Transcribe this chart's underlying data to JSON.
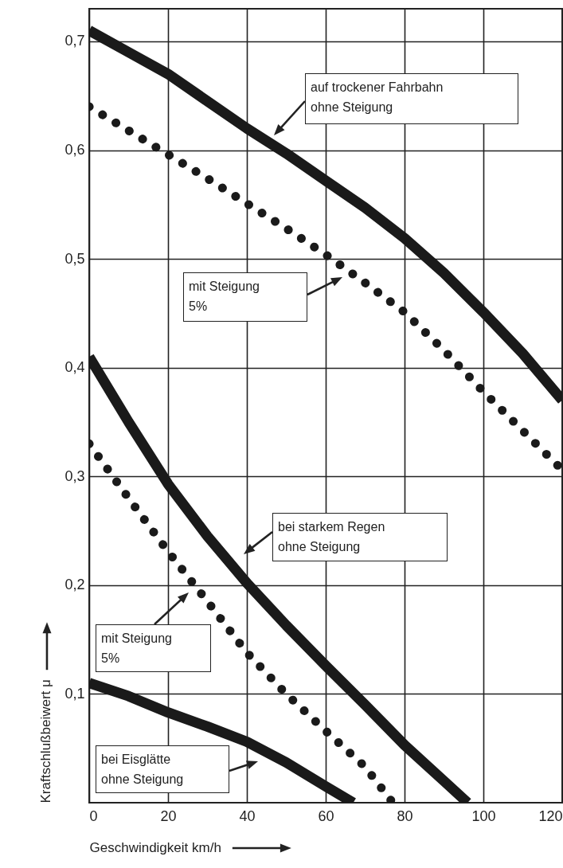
{
  "chart_data": {
    "type": "line",
    "xlabel": "Geschwindigkeit km/h",
    "ylabel": "Kraftschlußbeiwert μ",
    "xlim": [
      0,
      120
    ],
    "ylim": [
      0,
      0.73
    ],
    "xticks": [
      0,
      20,
      40,
      60,
      80,
      100,
      120
    ],
    "yticks": [
      {
        "value": 0.1,
        "label": "0,1"
      },
      {
        "value": 0.2,
        "label": "0,2"
      },
      {
        "value": 0.3,
        "label": "0,3"
      },
      {
        "value": 0.4,
        "label": "0,4"
      },
      {
        "value": 0.5,
        "label": "0,5"
      },
      {
        "value": 0.6,
        "label": "0,6"
      },
      {
        "value": 0.7,
        "label": "0,7"
      }
    ],
    "grid": true,
    "marker": "none",
    "series": [
      {
        "color": "#1a1a1a",
        "line_style": "solid",
        "x": [
          0,
          10,
          20,
          30,
          40,
          50,
          60,
          70,
          80,
          90,
          100,
          110,
          120
        ],
        "values": [
          0.71,
          0.69,
          0.67,
          0.645,
          0.62,
          0.597,
          0.572,
          0.547,
          0.519,
          0.487,
          0.451,
          0.413,
          0.37
        ]
      },
      {
        "color": "#1a1a1a",
        "line_style": "dotted",
        "x": [
          0,
          10,
          20,
          30,
          40,
          50,
          60,
          70,
          80,
          90,
          100,
          110,
          120
        ],
        "values": [
          0.64,
          0.618,
          0.596,
          0.574,
          0.551,
          0.528,
          0.504,
          0.478,
          0.451,
          0.416,
          0.378,
          0.342,
          0.306
        ]
      },
      {
        "color": "#1a1a1a",
        "line_style": "solid",
        "x": [
          0,
          10,
          20,
          30,
          40,
          50,
          60,
          70,
          80,
          90,
          96
        ],
        "values": [
          0.41,
          0.35,
          0.293,
          0.245,
          0.202,
          0.163,
          0.126,
          0.09,
          0.053,
          0.02,
          0
        ]
      },
      {
        "color": "#1a1a1a",
        "line_style": "dotted",
        "x": [
          0,
          10,
          20,
          30,
          40,
          50,
          60,
          70,
          77
        ],
        "values": [
          0.33,
          0.28,
          0.231,
          0.185,
          0.138,
          0.1,
          0.066,
          0.033,
          0
        ]
      },
      {
        "color": "#1a1a1a",
        "line_style": "solid",
        "x": [
          0,
          10,
          20,
          30,
          40,
          50,
          60,
          67
        ],
        "values": [
          0.11,
          0.098,
          0.083,
          0.07,
          0.056,
          0.037,
          0.015,
          0
        ]
      }
    ],
    "annotations": [
      "auf trockener Fahrbahn\nohne Steigung",
      "mit Steigung\n5%",
      "bei starkem Regen\nohne Steigung",
      "mit Steigung\n5%",
      "bei Eisglätte\nohne Steigung"
    ]
  }
}
